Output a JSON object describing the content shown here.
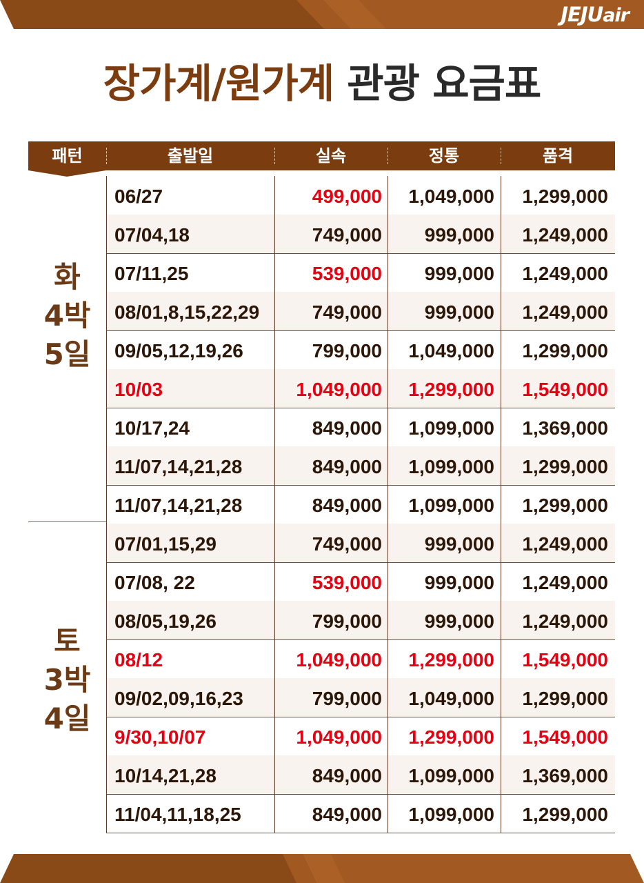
{
  "brand": {
    "logo_upper": "JEJU",
    "logo_lower": "air"
  },
  "title": {
    "part1": "장가계/원가계",
    "part2": "관광 요금표"
  },
  "colors": {
    "brown": "#7b3d10",
    "band": "#8a4a18",
    "band_light": "#a35a22",
    "red": "#e60012",
    "text": "#2c1608"
  },
  "headers": [
    "패턴",
    "출발일",
    "실속",
    "정통",
    "품격"
  ],
  "groups": [
    {
      "label_lines": [
        "화",
        "4박",
        "5일"
      ]
    },
    {
      "label_lines": [
        "토",
        "3박",
        "4일"
      ]
    }
  ],
  "rows": [
    {
      "date": "06/27",
      "p1": "499,000",
      "p2": "1,049,000",
      "p3": "1,299,000",
      "date_red": false,
      "p1_red": true,
      "p2_red": false,
      "p3_red": false
    },
    {
      "date": "07/04,18",
      "p1": "749,000",
      "p2": "999,000",
      "p3": "1,249,000",
      "date_red": false,
      "p1_red": false,
      "p2_red": false,
      "p3_red": false
    },
    {
      "date": "07/11,25",
      "p1": "539,000",
      "p2": "999,000",
      "p3": "1,249,000",
      "date_red": false,
      "p1_red": true,
      "p2_red": false,
      "p3_red": false
    },
    {
      "date": "08/01,8,15,22,29",
      "p1": "749,000",
      "p2": "999,000",
      "p3": "1,249,000",
      "date_red": false,
      "p1_red": false,
      "p2_red": false,
      "p3_red": false
    },
    {
      "date": "09/05,12,19,26",
      "p1": "799,000",
      "p2": "1,049,000",
      "p3": "1,299,000",
      "date_red": false,
      "p1_red": false,
      "p2_red": false,
      "p3_red": false
    },
    {
      "date": "10/03",
      "p1": "1,049,000",
      "p2": "1,299,000",
      "p3": "1,549,000",
      "date_red": true,
      "p1_red": true,
      "p2_red": true,
      "p3_red": true
    },
    {
      "date": "10/17,24",
      "p1": "849,000",
      "p2": "1,099,000",
      "p3": "1,369,000",
      "date_red": false,
      "p1_red": false,
      "p2_red": false,
      "p3_red": false
    },
    {
      "date": "11/07,14,21,28",
      "p1": "849,000",
      "p2": "1,099,000",
      "p3": "1,299,000",
      "date_red": false,
      "p1_red": false,
      "p2_red": false,
      "p3_red": false
    },
    {
      "date": "11/07,14,21,28",
      "p1": "849,000",
      "p2": "1,099,000",
      "p3": "1,299,000",
      "date_red": false,
      "p1_red": false,
      "p2_red": false,
      "p3_red": false
    },
    {
      "date": "07/01,15,29",
      "p1": "749,000",
      "p2": "999,000",
      "p3": "1,249,000",
      "date_red": false,
      "p1_red": false,
      "p2_red": false,
      "p3_red": false
    },
    {
      "date": "07/08, 22",
      "p1": "539,000",
      "p2": "999,000",
      "p3": "1,249,000",
      "date_red": false,
      "p1_red": true,
      "p2_red": false,
      "p3_red": false
    },
    {
      "date": "08/05,19,26",
      "p1": "799,000",
      "p2": "999,000",
      "p3": "1,249,000",
      "date_red": false,
      "p1_red": false,
      "p2_red": false,
      "p3_red": false
    },
    {
      "date": "08/12",
      "p1": "1,049,000",
      "p2": "1,299,000",
      "p3": "1,549,000",
      "date_red": true,
      "p1_red": true,
      "p2_red": true,
      "p3_red": true
    },
    {
      "date": "09/02,09,16,23",
      "p1": "799,000",
      "p2": "1,049,000",
      "p3": "1,299,000",
      "date_red": false,
      "p1_red": false,
      "p2_red": false,
      "p3_red": false
    },
    {
      "date": "9/30,10/07",
      "p1": "1,049,000",
      "p2": "1,299,000",
      "p3": "1,549,000",
      "date_red": true,
      "p1_red": true,
      "p2_red": true,
      "p3_red": true
    },
    {
      "date": "10/14,21,28",
      "p1": "849,000",
      "p2": "1,099,000",
      "p3": "1,369,000",
      "date_red": false,
      "p1_red": false,
      "p2_red": false,
      "p3_red": false
    },
    {
      "date": "11/04,11,18,25",
      "p1": "849,000",
      "p2": "1,099,000",
      "p3": "1,299,000",
      "date_red": false,
      "p1_red": false,
      "p2_red": false,
      "p3_red": false
    }
  ]
}
